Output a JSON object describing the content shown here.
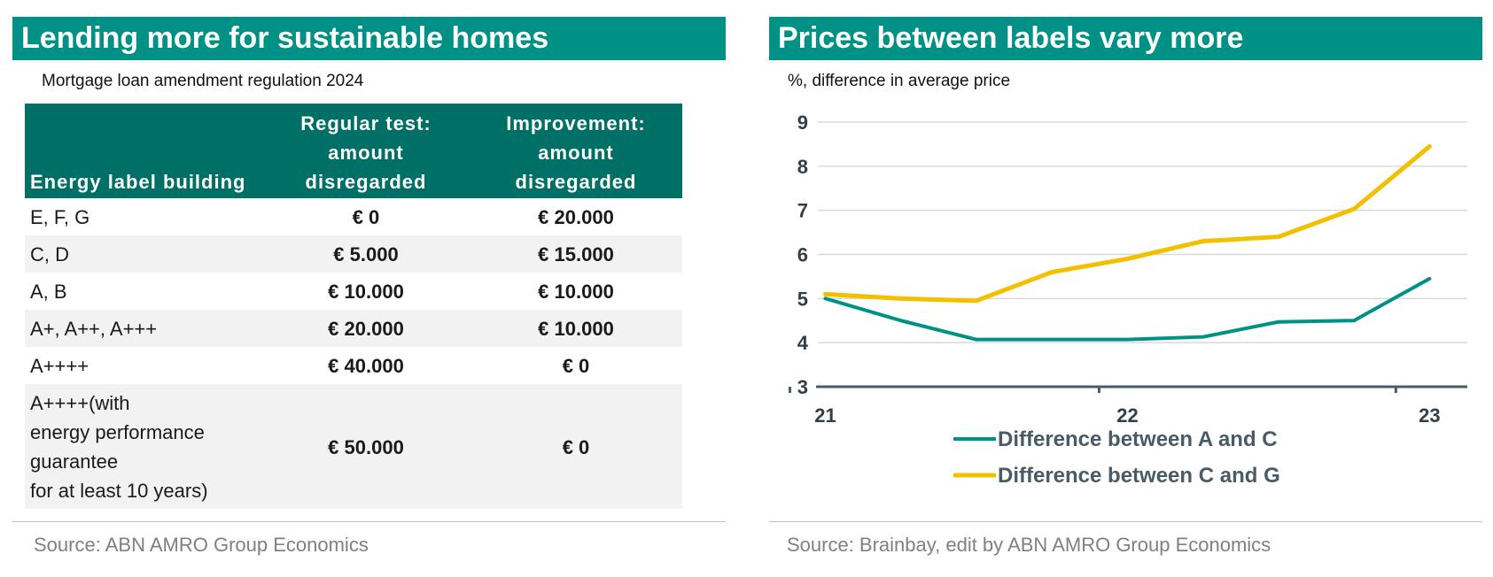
{
  "left": {
    "title": "Lending more for sustainable homes",
    "subtitle": "Mortgage loan amendment regulation 2024",
    "source": "Source: ABN AMRO Group Economics",
    "table": {
      "headers": [
        [
          "Energy label building"
        ],
        [
          "Regular test:",
          "amount",
          "disregarded"
        ],
        [
          "Improvement:",
          "amount",
          "disregarded"
        ]
      ],
      "rows": [
        {
          "label": [
            "E, F, G"
          ],
          "regular": "€ 0",
          "improvement": "€ 20.000"
        },
        {
          "label": [
            "C, D"
          ],
          "regular": "€ 5.000",
          "improvement": "€ 15.000"
        },
        {
          "label": [
            "A, B"
          ],
          "regular": "€ 10.000",
          "improvement": "€ 10.000"
        },
        {
          "label": [
            "A+, A++, A+++"
          ],
          "regular": "€ 20.000",
          "improvement": "€ 10.000"
        },
        {
          "label": [
            "A++++"
          ],
          "regular": "€ 40.000",
          "improvement": "€ 0"
        },
        {
          "label": [
            "A++++(with",
            "energy performance",
            "guarantee",
            "for at least 10 years)"
          ],
          "regular": "€ 50.000",
          "improvement": "€ 0"
        }
      ]
    }
  },
  "right": {
    "title": "Prices between labels vary more",
    "subtitle": "%, difference in average price",
    "source": "Source: Brainbay, edit by ABN AMRO Group Economics"
  },
  "chart_data": {
    "type": "line",
    "title": "Prices between labels vary more",
    "subtitle": "%, difference in average price",
    "x_ticks": [
      "21",
      "22",
      "23"
    ],
    "x": [
      21.0,
      21.25,
      21.5,
      21.75,
      22.0,
      22.25,
      22.5,
      22.75,
      23.0
    ],
    "ylim": [
      3,
      9
    ],
    "y_ticks": [
      3,
      4,
      5,
      6,
      7,
      8,
      9
    ],
    "xlim": [
      20.975,
      23.125
    ],
    "grid": true,
    "legend_position": "bottom",
    "series": [
      {
        "name": "Difference between A and C",
        "color": "#009186",
        "values": [
          5.0,
          4.5,
          4.07,
          4.07,
          4.07,
          4.13,
          4.47,
          4.5,
          5.45
        ]
      },
      {
        "name": "Difference between C and G",
        "color": "#f3c000",
        "values": [
          5.1,
          5.0,
          4.95,
          5.6,
          5.9,
          6.3,
          6.4,
          7.03,
          8.45
        ]
      }
    ]
  }
}
